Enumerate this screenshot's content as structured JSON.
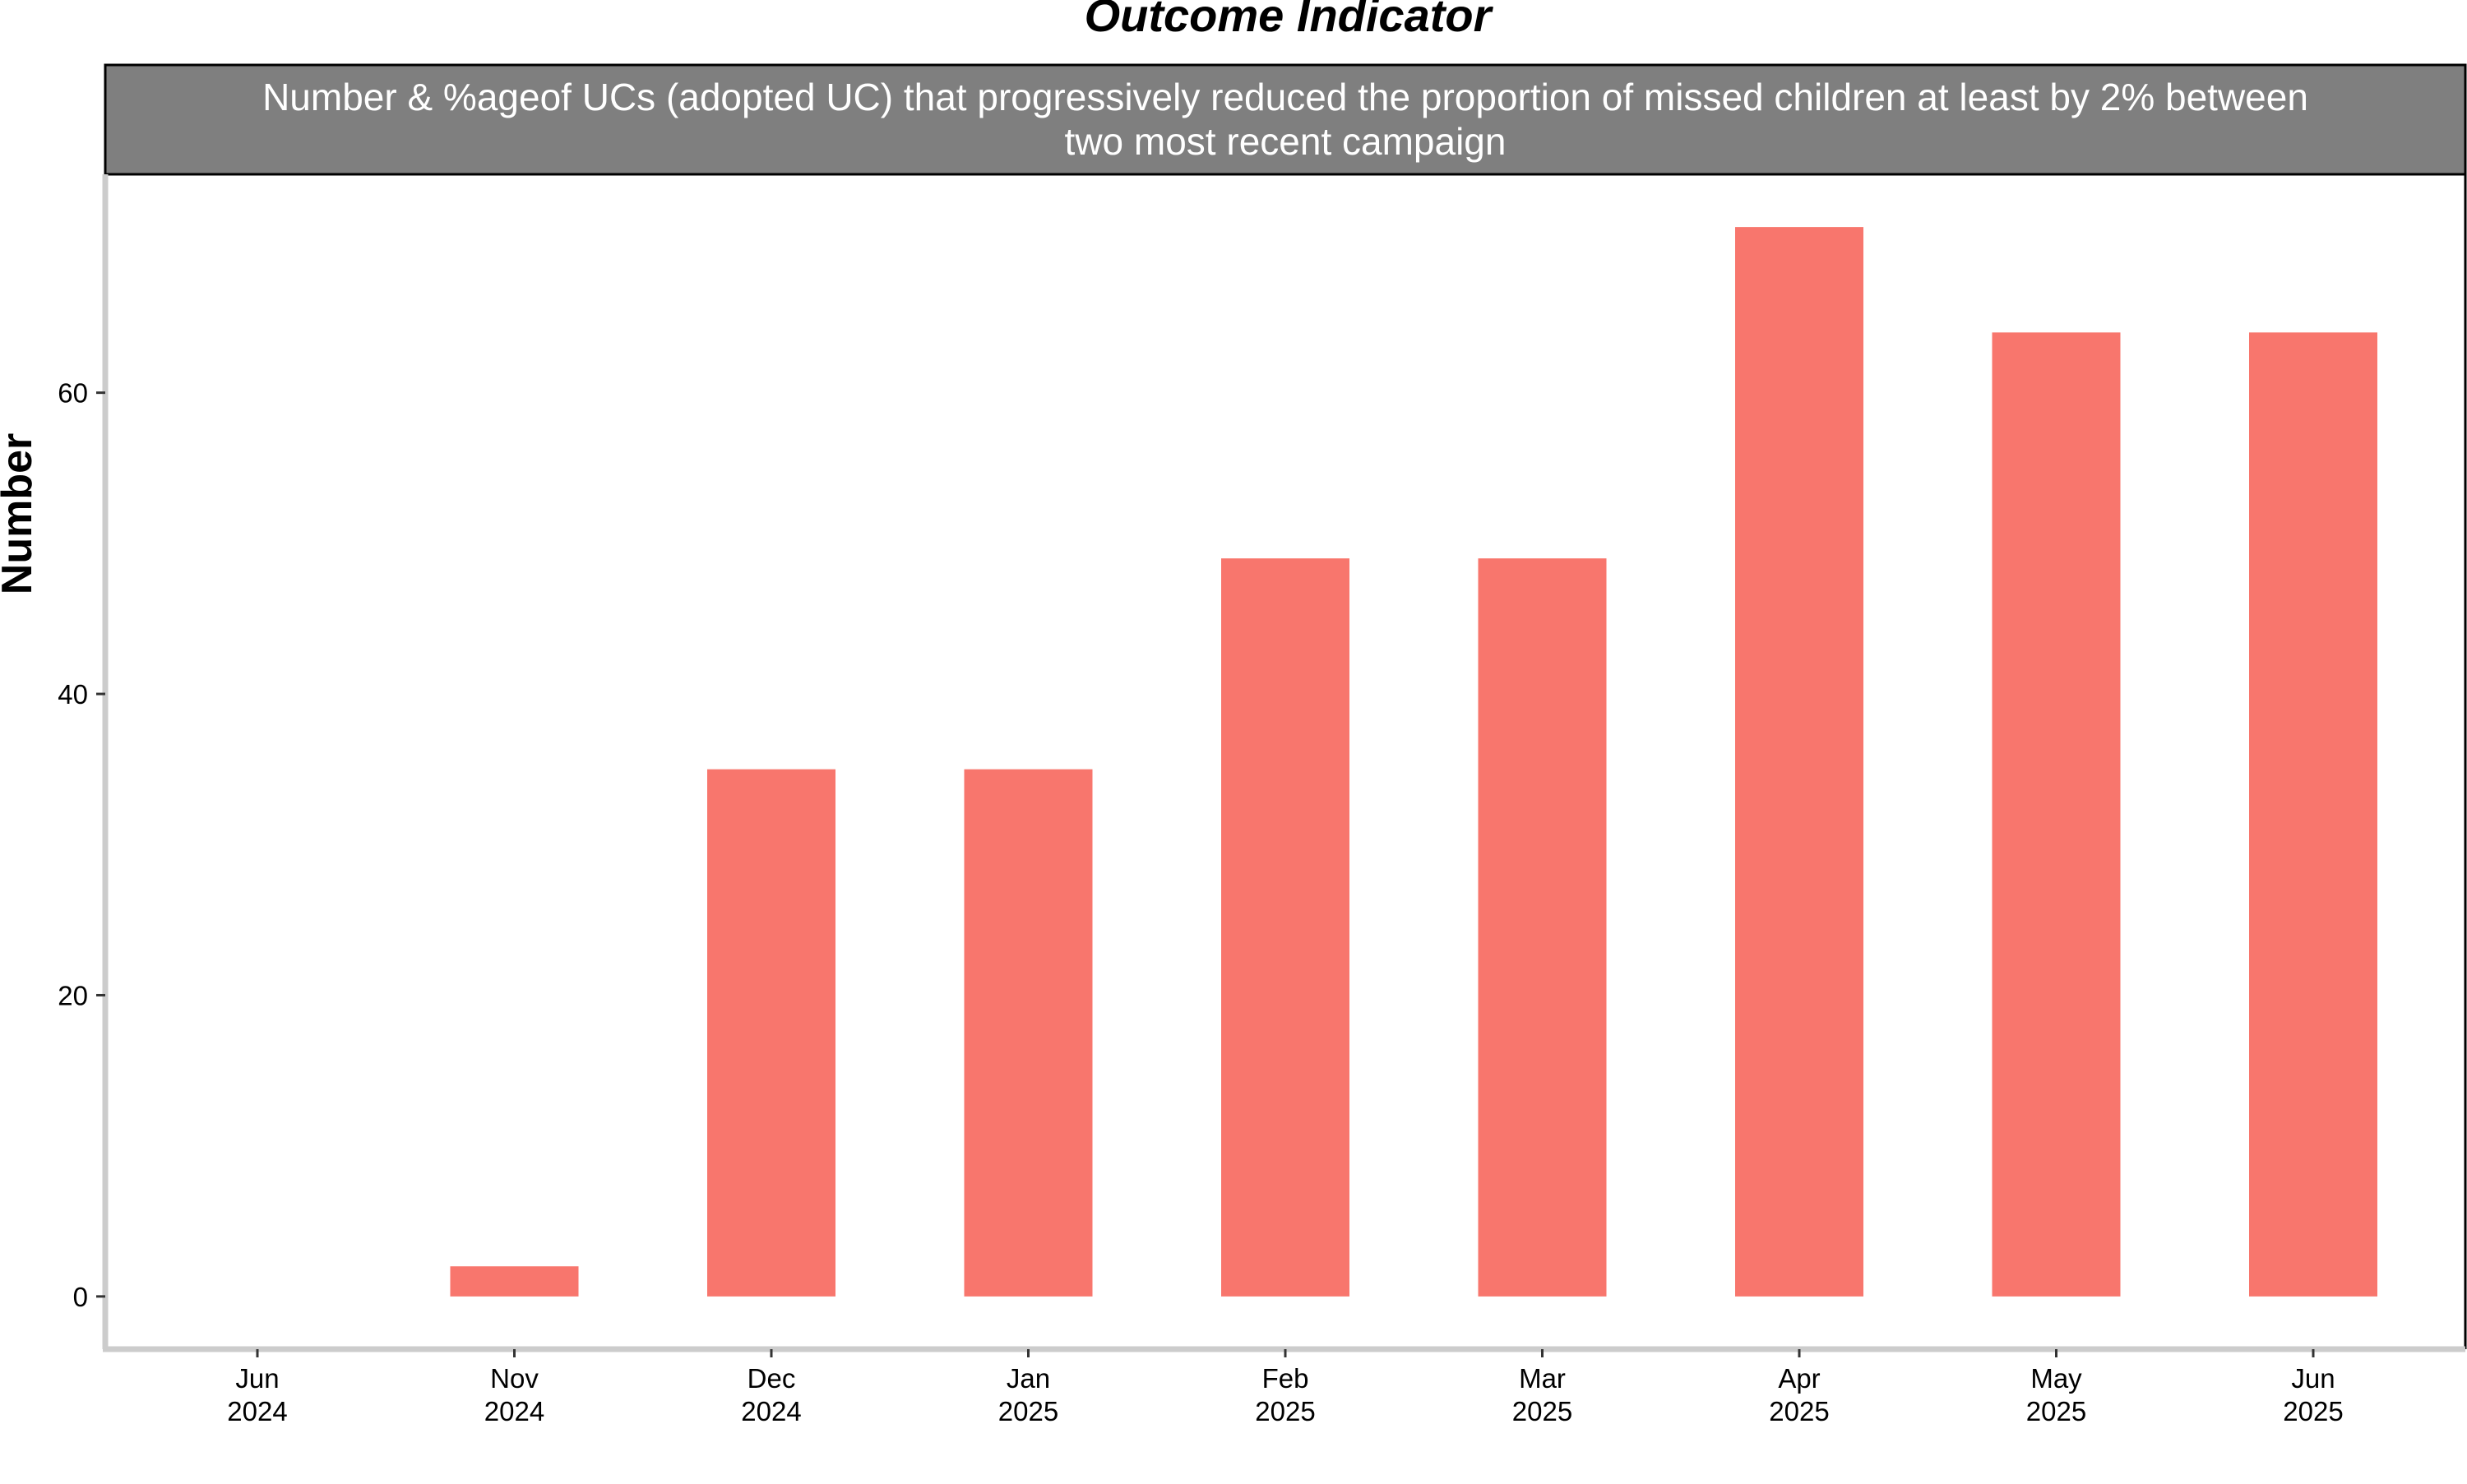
{
  "chart_data": {
    "type": "bar",
    "title": "Outcome Indicator",
    "subtitle_lines": [
      "Number & %ageof UCs (adopted UC) that progressively reduced the proportion of missed children at least by 2% between",
      "two most recent campaign"
    ],
    "xlabel": "",
    "ylabel": "Number",
    "categories": [
      [
        "Jun",
        "2024"
      ],
      [
        "Nov",
        "2024"
      ],
      [
        "Dec",
        "2024"
      ],
      [
        "Jan",
        "2025"
      ],
      [
        "Feb",
        "2025"
      ],
      [
        "Mar",
        "2025"
      ],
      [
        "Apr",
        "2025"
      ],
      [
        "May",
        "2025"
      ],
      [
        "Jun",
        "2025"
      ]
    ],
    "values": [
      0,
      2,
      35,
      35,
      49,
      49,
      71,
      64,
      64
    ],
    "yticks": [
      0,
      20,
      40,
      60
    ],
    "ylim": [
      -3.5,
      74.5
    ],
    "grid": false,
    "legend": "none",
    "colors": {
      "bar": "#F8766D",
      "strip_background": "#7F7F7F",
      "axis": "#CCCCCC",
      "panel_border": "#000000"
    }
  }
}
